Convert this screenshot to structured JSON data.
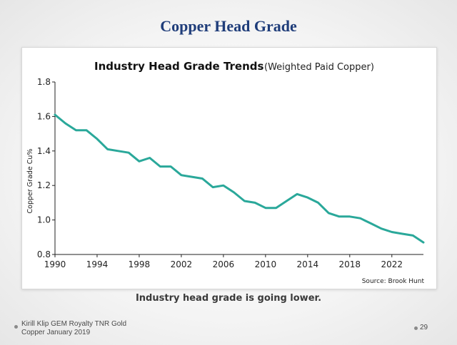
{
  "slide": {
    "title": "Copper Head Grade",
    "caption": "Industry head grade is going lower.",
    "footer_line1": "Kirill Klip GEM Royalty TNR Gold",
    "footer_line2": "Copper January 2019",
    "page_number": "29"
  },
  "colors": {
    "line": "#2aa89a",
    "title": "#1f3d7a"
  },
  "chart_data": {
    "type": "line",
    "title": "Industry Head Grade Trends",
    "subtitle": "(Weighted Paid Copper)",
    "ylabel": "Copper Grade Cu%",
    "xlabel": "",
    "source": "Source: Brook Hunt",
    "xlim": [
      1990,
      2025
    ],
    "ylim": [
      0.8,
      1.8
    ],
    "x_ticks": [
      "1990",
      "1994",
      "1998",
      "2002",
      "2006",
      "2010",
      "2014",
      "2018",
      "2022"
    ],
    "y_ticks": [
      "0.8",
      "1.0",
      "1.2",
      "1.4",
      "1.6",
      "1.8"
    ],
    "grid": false,
    "series": [
      {
        "x": [
          1990,
          1991,
          1992,
          1993,
          1994,
          1995,
          1996,
          1997,
          1998,
          1999,
          2000,
          2001,
          2002,
          2003,
          2004,
          2005,
          2006,
          2007,
          2008,
          2009,
          2010,
          2011,
          2012,
          2013,
          2014,
          2015,
          2016,
          2017,
          2018,
          2019,
          2020,
          2021,
          2022,
          2023,
          2024,
          2025
        ],
        "values": [
          1.61,
          1.56,
          1.52,
          1.52,
          1.47,
          1.41,
          1.4,
          1.39,
          1.34,
          1.36,
          1.31,
          1.31,
          1.26,
          1.25,
          1.24,
          1.19,
          1.2,
          1.16,
          1.11,
          1.1,
          1.07,
          1.07,
          1.11,
          1.15,
          1.13,
          1.1,
          1.04,
          1.02,
          1.02,
          1.01,
          0.98,
          0.95,
          0.93,
          0.92,
          0.91,
          0.87
        ]
      }
    ]
  }
}
